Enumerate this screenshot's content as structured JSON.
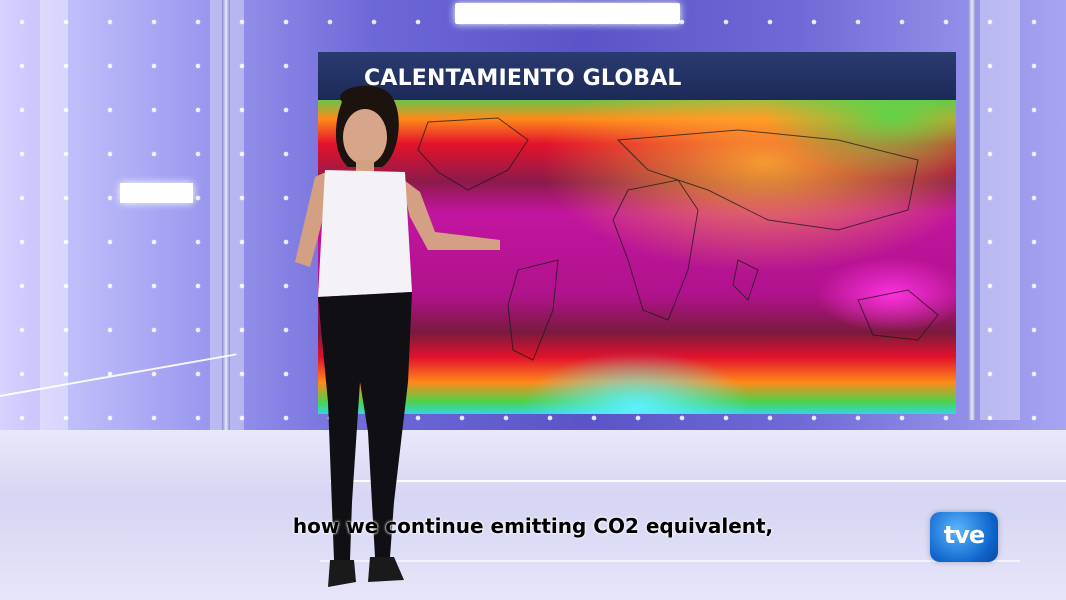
{
  "screen": {
    "title": "CALENTAMIENTO GLOBAL"
  },
  "caption": {
    "text": "how we continue emitting CO2 equivalent,"
  },
  "logo": {
    "text": "tve"
  },
  "colors": {
    "wall": "#6d68d8",
    "title_bar": "#1c2a58",
    "heat_magenta": "#c2159f",
    "heat_red": "#e3122c",
    "heat_orange": "#ff8a1a",
    "heat_green": "#4fd14a",
    "heat_cyan": "#30d7e0",
    "logo_blue": "#0d62c9"
  }
}
